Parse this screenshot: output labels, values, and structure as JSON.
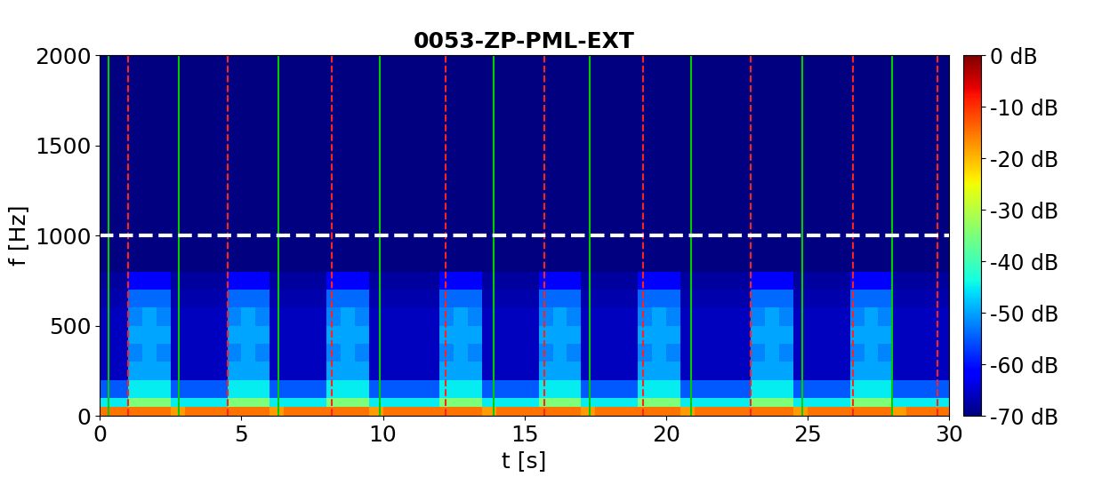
{
  "chart_data": {
    "type": "spectrogram",
    "title": "0053-ZP-PML-EXT",
    "x_label": "t [s]",
    "y_label": "f [Hz]",
    "xlim": [
      0,
      30
    ],
    "xticks": [
      0,
      5,
      10,
      15,
      20,
      25,
      30
    ],
    "ylim": [
      0,
      2000
    ],
    "yticks": [
      0,
      500,
      1000,
      1500,
      2000
    ],
    "color": "jet",
    "t_edges": [
      0,
      0.5,
      1,
      1.5,
      2,
      2.5,
      3,
      3.5,
      4,
      4.5,
      5,
      5.5,
      6,
      6.5,
      7,
      7.5,
      8,
      8.5,
      9,
      9.5,
      10,
      10.5,
      11,
      11.5,
      12,
      12.5,
      13,
      13.5,
      14,
      14.5,
      15,
      15.5,
      16,
      16.5,
      17,
      17.5,
      18,
      18.5,
      19,
      19.5,
      20,
      20.5,
      21,
      21.5,
      22,
      22.5,
      23,
      23.5,
      24,
      24.5,
      25,
      25.5,
      26,
      26.5,
      27,
      27.5,
      28,
      28.5,
      29,
      29.5,
      30
    ],
    "f_edges": [
      0,
      50,
      100,
      200,
      300,
      400,
      500,
      600,
      700,
      800,
      1000,
      2000
    ],
    "cells": [
      [
        -15,
        -15,
        -15,
        -15,
        -15,
        -18,
        -15,
        -15,
        -15,
        -15,
        -15,
        -15,
        -18,
        -15,
        -15,
        -15,
        -15,
        -15,
        -15,
        -18,
        -15,
        -15,
        -15,
        -15,
        -15,
        -15,
        -15,
        -18,
        -15,
        -15,
        -15,
        -15,
        -15,
        -15,
        -18,
        -15,
        -15,
        -15,
        -15,
        -15,
        -15,
        -18,
        -15,
        -15,
        -15,
        -15,
        -15,
        -15,
        -15,
        -18,
        -15,
        -15,
        -15,
        -15,
        -15,
        -15,
        -18,
        -15,
        -15,
        -15
      ],
      [
        -45,
        -45,
        -35,
        -35,
        -35,
        -45,
        -45,
        -45,
        -45,
        -35,
        -35,
        -35,
        -45,
        -45,
        -45,
        -45,
        -35,
        -35,
        -35,
        -45,
        -45,
        -45,
        -45,
        -45,
        -35,
        -35,
        -35,
        -45,
        -45,
        -45,
        -45,
        -35,
        -35,
        -35,
        -45,
        -45,
        -45,
        -45,
        -35,
        -35,
        -35,
        -45,
        -45,
        -45,
        -45,
        -45,
        -35,
        -35,
        -35,
        -45,
        -45,
        -45,
        -45,
        -35,
        -35,
        -35,
        -45,
        -45,
        -45,
        -45
      ],
      [
        -55,
        -55,
        -45,
        -45,
        -45,
        -55,
        -55,
        -55,
        -55,
        -45,
        -45,
        -45,
        -55,
        -55,
        -55,
        -55,
        -45,
        -45,
        -45,
        -55,
        -55,
        -55,
        -55,
        -55,
        -45,
        -45,
        -45,
        -55,
        -55,
        -55,
        -55,
        -45,
        -45,
        -45,
        -55,
        -55,
        -55,
        -55,
        -45,
        -45,
        -45,
        -55,
        -55,
        -55,
        -55,
        -55,
        -45,
        -45,
        -45,
        -55,
        -55,
        -55,
        -55,
        -45,
        -45,
        -45,
        -55,
        -55,
        -55,
        -55
      ],
      [
        -66,
        -66,
        -50,
        -50,
        -50,
        -66,
        -66,
        -66,
        -66,
        -50,
        -50,
        -50,
        -66,
        -66,
        -66,
        -66,
        -50,
        -50,
        -50,
        -66,
        -66,
        -66,
        -66,
        -66,
        -50,
        -50,
        -50,
        -66,
        -66,
        -66,
        -66,
        -50,
        -50,
        -50,
        -66,
        -66,
        -66,
        -66,
        -50,
        -50,
        -50,
        -66,
        -66,
        -66,
        -66,
        -66,
        -50,
        -50,
        -50,
        -66,
        -66,
        -66,
        -66,
        -50,
        -50,
        -50,
        -66,
        -66,
        -66,
        -66
      ],
      [
        -66,
        -66,
        -52,
        -50,
        -52,
        -66,
        -66,
        -66,
        -66,
        -52,
        -50,
        -52,
        -66,
        -66,
        -66,
        -66,
        -52,
        -50,
        -52,
        -66,
        -66,
        -66,
        -66,
        -66,
        -52,
        -50,
        -52,
        -66,
        -66,
        -66,
        -66,
        -52,
        -50,
        -52,
        -66,
        -66,
        -66,
        -66,
        -52,
        -50,
        -52,
        -66,
        -66,
        -66,
        -66,
        -66,
        -52,
        -50,
        -52,
        -66,
        -66,
        -66,
        -66,
        -52,
        -50,
        -52,
        -66,
        -66,
        -66,
        -66
      ],
      [
        -66,
        -66,
        -50,
        -50,
        -50,
        -66,
        -66,
        -66,
        -66,
        -50,
        -50,
        -50,
        -66,
        -66,
        -66,
        -66,
        -50,
        -50,
        -50,
        -66,
        -66,
        -66,
        -66,
        -66,
        -50,
        -50,
        -50,
        -66,
        -66,
        -66,
        -66,
        -50,
        -50,
        -50,
        -66,
        -66,
        -66,
        -66,
        -50,
        -50,
        -50,
        -66,
        -66,
        -66,
        -66,
        -66,
        -50,
        -50,
        -50,
        -66,
        -66,
        -66,
        -66,
        -50,
        -50,
        -50,
        -66,
        -66,
        -66,
        -66
      ],
      [
        -66,
        -66,
        -52,
        -50,
        -52,
        -66,
        -66,
        -66,
        -66,
        -52,
        -50,
        -52,
        -66,
        -66,
        -66,
        -66,
        -52,
        -50,
        -52,
        -66,
        -66,
        -66,
        -66,
        -66,
        -52,
        -50,
        -52,
        -66,
        -66,
        -66,
        -66,
        -52,
        -50,
        -52,
        -66,
        -66,
        -66,
        -66,
        -52,
        -50,
        -52,
        -66,
        -66,
        -66,
        -66,
        -66,
        -52,
        -50,
        -52,
        -66,
        -66,
        -66,
        -66,
        -52,
        -50,
        -52,
        -66,
        -66,
        -66,
        -66
      ],
      [
        -67,
        -67,
        -54,
        -54,
        -54,
        -67,
        -67,
        -67,
        -67,
        -54,
        -54,
        -54,
        -67,
        -67,
        -67,
        -67,
        -54,
        -54,
        -54,
        -67,
        -67,
        -67,
        -67,
        -67,
        -54,
        -54,
        -54,
        -67,
        -67,
        -67,
        -67,
        -54,
        -54,
        -54,
        -67,
        -67,
        -67,
        -67,
        -54,
        -54,
        -54,
        -67,
        -67,
        -67,
        -67,
        -67,
        -54,
        -54,
        -54,
        -67,
        -67,
        -67,
        -67,
        -54,
        -54,
        -54,
        -67,
        -67,
        -67,
        -67
      ],
      [
        -68,
        -68,
        -62,
        -62,
        -62,
        -68,
        -68,
        -68,
        -68,
        -62,
        -62,
        -62,
        -68,
        -68,
        -68,
        -68,
        -62,
        -62,
        -62,
        -68,
        -68,
        -68,
        -68,
        -68,
        -62,
        -62,
        -62,
        -68,
        -68,
        -68,
        -68,
        -62,
        -62,
        -62,
        -68,
        -68,
        -68,
        -68,
        -62,
        -62,
        -62,
        -68,
        -68,
        -68,
        -68,
        -68,
        -62,
        -62,
        -62,
        -68,
        -68,
        -68,
        -68,
        -62,
        -62,
        -62,
        -68,
        -68,
        -68,
        -68
      ],
      [
        -70,
        -70,
        -70,
        -70,
        -70,
        -70,
        -70,
        -70,
        -70,
        -70,
        -70,
        -70,
        -70,
        -70,
        -70,
        -70,
        -70,
        -70,
        -70,
        -70,
        -70,
        -70,
        -70,
        -70,
        -70,
        -70,
        -70,
        -70,
        -70,
        -70,
        -70,
        -70,
        -70,
        -70,
        -70,
        -70,
        -70,
        -70,
        -70,
        -70,
        -70,
        -70,
        -70,
        -70,
        -70,
        -70,
        -70,
        -70,
        -70,
        -70,
        -70,
        -70,
        -70,
        -70,
        -70,
        -70,
        -70,
        -70,
        -70,
        -70
      ],
      [
        -70,
        -70,
        -70,
        -70,
        -70,
        -70,
        -70,
        -70,
        -70,
        -70,
        -70,
        -70,
        -70,
        -70,
        -70,
        -70,
        -70,
        -70,
        -70,
        -70,
        -70,
        -70,
        -70,
        -70,
        -70,
        -70,
        -70,
        -70,
        -70,
        -70,
        -70,
        -70,
        -70,
        -70,
        -70,
        -70,
        -70,
        -70,
        -70,
        -70,
        -70,
        -70,
        -70,
        -70,
        -70,
        -70,
        -70,
        -70,
        -70,
        -70,
        -70,
        -70,
        -70,
        -70,
        -70,
        -70,
        -70,
        -70,
        -70,
        -70
      ]
    ],
    "colorbar_lim": [
      -70,
      0
    ],
    "colorbar_ticks": [
      {
        "value": 0,
        "label": "0 dB"
      },
      {
        "value": -10,
        "label": "-10 dB"
      },
      {
        "value": -20,
        "label": "-20 dB"
      },
      {
        "value": -30,
        "label": "-30 dB"
      },
      {
        "value": -40,
        "label": "-40 dB"
      },
      {
        "value": -50,
        "label": "-50 dB"
      },
      {
        "value": -60,
        "label": "-60 dB"
      },
      {
        "value": -70,
        "label": "-70 dB"
      }
    ],
    "green_lines": [
      0.3,
      2.8,
      6.3,
      9.9,
      13.9,
      17.3,
      20.9,
      24.8,
      28.0
    ],
    "red_lines": [
      1.0,
      4.5,
      8.2,
      12.2,
      15.7,
      19.2,
      23.0,
      26.6,
      29.6
    ],
    "threshold_line": 1000
  }
}
